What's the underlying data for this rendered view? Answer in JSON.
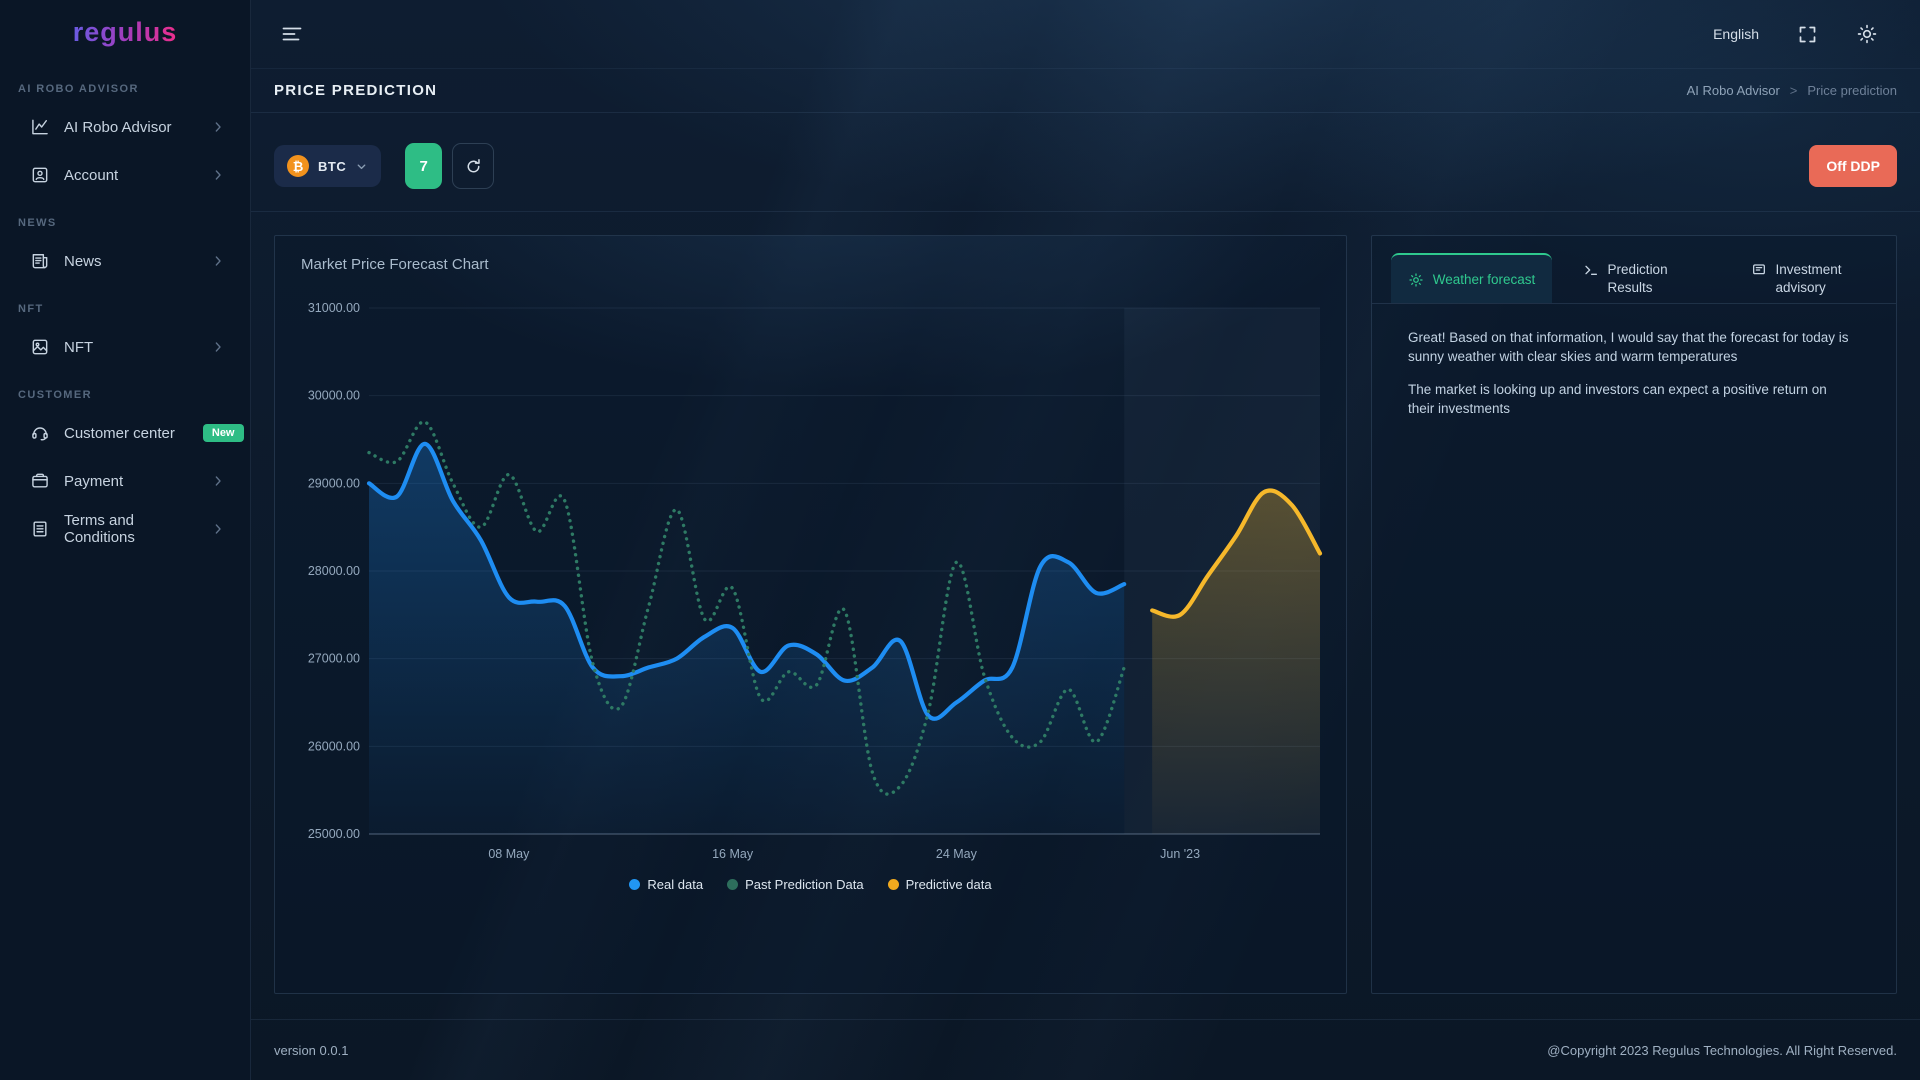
{
  "brand": {
    "logo": "regulus"
  },
  "topbar": {
    "language": "English"
  },
  "sidebar": {
    "sections": [
      {
        "header": "AI ROBO ADVISOR",
        "items": [
          {
            "label": "AI Robo Advisor"
          },
          {
            "label": "Account"
          }
        ]
      },
      {
        "header": "NEWS",
        "items": [
          {
            "label": "News"
          }
        ]
      },
      {
        "header": "NFT",
        "items": [
          {
            "label": "NFT"
          }
        ]
      },
      {
        "header": "CUSTOMER",
        "items": [
          {
            "label": "Customer center",
            "badge": "New"
          },
          {
            "label": "Payment"
          },
          {
            "label": "Terms and Conditions"
          }
        ]
      }
    ]
  },
  "page": {
    "title": "PRICE PREDICTION",
    "breadcrumb_parent": "AI Robo Advisor",
    "breadcrumb_separator": ">",
    "breadcrumb_current": "Price prediction"
  },
  "toolbar": {
    "asset": "BTC",
    "coin_symbol": "₿",
    "prediction_days": "7",
    "off_button": "Off DDP",
    "coin_color": "#F2921D",
    "days_button_color": "#2EBD85",
    "off_button_color": "#E96A57"
  },
  "chart_data": {
    "type": "line",
    "title": "Market Price Forecast Chart",
    "ylim": [
      25000,
      31000
    ],
    "x_range_days": 34,
    "y_ticks": [
      {
        "value": 25000,
        "label": "25000.00"
      },
      {
        "value": 26000,
        "label": "26000.00"
      },
      {
        "value": 27000,
        "label": "27000.00"
      },
      {
        "value": 28000,
        "label": "28000.00"
      },
      {
        "value": 29000,
        "label": "29000.00"
      },
      {
        "value": 30000,
        "label": "30000.00"
      },
      {
        "value": 31000,
        "label": "31000.00"
      }
    ],
    "x_ticks": [
      {
        "pos": 5,
        "label": "08 May"
      },
      {
        "pos": 13,
        "label": "16 May"
      },
      {
        "pos": 21,
        "label": "24 May"
      },
      {
        "pos": 29,
        "label": "Jun '23"
      }
    ],
    "prediction_zone": [
      27,
      34
    ],
    "series": [
      {
        "name": "Real data",
        "color": "#1E8DF2",
        "line_style": "solid",
        "area": true,
        "area_opacity": 0.28,
        "x": [
          0,
          1,
          2,
          3,
          4,
          5,
          6,
          7,
          8,
          9,
          10,
          11,
          12,
          13,
          14,
          15,
          16,
          17,
          18,
          19,
          20,
          21,
          22,
          23,
          24,
          25,
          26,
          27
        ],
        "y": [
          29000,
          28850,
          29450,
          28800,
          28350,
          27700,
          27650,
          27600,
          26900,
          26800,
          26900,
          27000,
          27250,
          27350,
          26850,
          27150,
          27050,
          26750,
          26900,
          27200,
          26350,
          26500,
          26750,
          26900,
          28050,
          28100,
          27750,
          27850
        ]
      },
      {
        "name": "Past Prediction Data",
        "color": "#2E7A64",
        "line_style": "dotted",
        "area": false,
        "area_opacity": 0,
        "x": [
          0,
          1,
          2,
          3,
          4,
          5,
          6,
          7,
          8,
          9,
          10,
          11,
          12,
          13,
          14,
          15,
          16,
          17,
          18,
          19,
          20,
          21,
          22,
          23,
          24,
          25,
          26,
          27
        ],
        "y": [
          29350,
          29250,
          29700,
          29000,
          28500,
          29100,
          28450,
          28800,
          26950,
          26450,
          27600,
          28700,
          27450,
          27800,
          26550,
          26850,
          26700,
          27550,
          25700,
          25550,
          26400,
          28100,
          26800,
          26100,
          26050,
          26650,
          26050,
          26900
        ]
      },
      {
        "name": "Predictive data",
        "color": "#F6B82B",
        "line_style": "solid",
        "area": true,
        "area_opacity": 0.3,
        "x": [
          28,
          29,
          30,
          31,
          32,
          33,
          34
        ],
        "y": [
          27550,
          27500,
          27950,
          28400,
          28900,
          28750,
          28200
        ]
      }
    ],
    "legend": [
      {
        "label": "Real data",
        "color": "#2196F3"
      },
      {
        "label": "Past Prediction Data",
        "color": "#2D6E5C"
      },
      {
        "label": "Predictive data",
        "color": "#F0A91E"
      }
    ]
  },
  "panel": {
    "tabs": [
      {
        "label": "Weather forecast"
      },
      {
        "label": "Prediction Results"
      },
      {
        "label": "Investment advisory"
      }
    ],
    "paragraphs": [
      "Great! Based on that information, I would say that the forecast for today is sunny weather with clear skies and warm temperatures",
      "The market is looking up and investors can expect a positive return on their investments"
    ]
  },
  "footer": {
    "version": "version 0.0.1",
    "copyright": "@Copyright 2023 Regulus Technologies. All Right Reserved."
  }
}
